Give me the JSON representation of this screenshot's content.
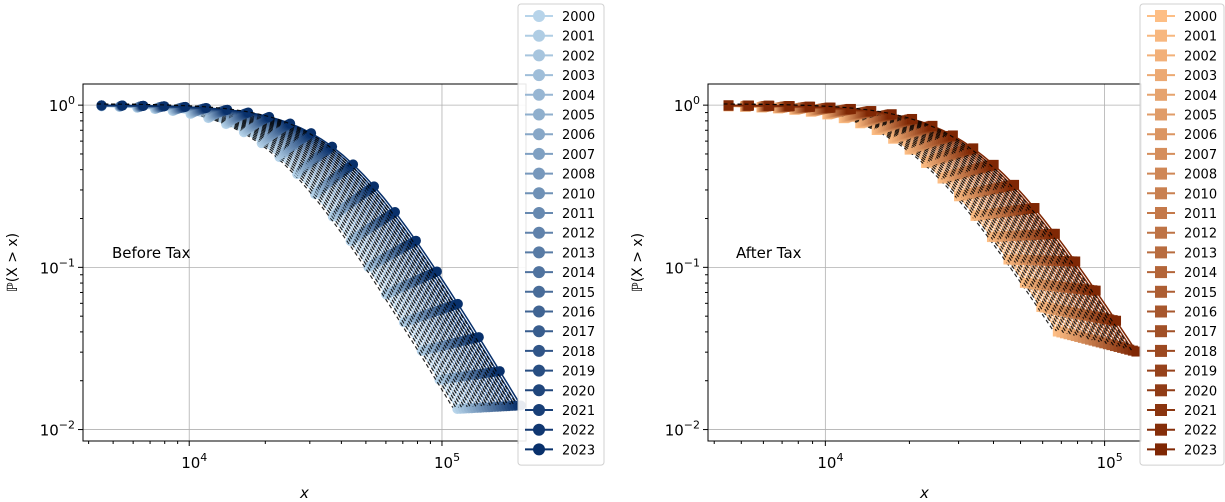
{
  "chart_data": [
    {
      "type": "line",
      "annotation": "Before Tax",
      "xlabel": "x",
      "ylabel": "ℙ(X > x)",
      "xscale": "log",
      "yscale": "log",
      "xlim": [
        3800,
        215000
      ],
      "ylim": [
        0.0085,
        1.35
      ],
      "x_ticks": [
        {
          "value": 10000,
          "base": "10",
          "exp": "4"
        },
        {
          "value": 100000,
          "base": "10",
          "exp": "5"
        }
      ],
      "y_ticks": [
        {
          "value": 1,
          "base": "10",
          "exp": "0"
        },
        {
          "value": 0.1,
          "base": "10",
          "exp": "−1"
        },
        {
          "value": 0.01,
          "base": "10",
          "exp": "−2"
        }
      ],
      "grid": true,
      "legend_position": "outside-right-top",
      "marker": "circle",
      "colormap": "Blues",
      "color_light": "#b7d4ea",
      "color_dark": "#08306b",
      "fit_line_color": "#000000",
      "x_min": 4500,
      "x_median_first": 22000,
      "x_median_last": 40000,
      "x_max_first": 115000,
      "x_max_last": 205000,
      "tail_exponent": 2.6,
      "series": [
        {
          "name": "2000"
        },
        {
          "name": "2001"
        },
        {
          "name": "2002"
        },
        {
          "name": "2003"
        },
        {
          "name": "2004"
        },
        {
          "name": "2005"
        },
        {
          "name": "2006"
        },
        {
          "name": "2007"
        },
        {
          "name": "2008"
        },
        {
          "name": "2010"
        },
        {
          "name": "2011"
        },
        {
          "name": "2012"
        },
        {
          "name": "2013"
        },
        {
          "name": "2014"
        },
        {
          "name": "2015"
        },
        {
          "name": "2016"
        },
        {
          "name": "2017"
        },
        {
          "name": "2018"
        },
        {
          "name": "2019"
        },
        {
          "name": "2020"
        },
        {
          "name": "2021"
        },
        {
          "name": "2022"
        },
        {
          "name": "2023"
        }
      ]
    },
    {
      "type": "line",
      "annotation": "After Tax",
      "xlabel": "x",
      "ylabel": "ℙ(X > x)",
      "xscale": "log",
      "yscale": "log",
      "xlim": [
        3800,
        135000
      ],
      "ylim": [
        0.0085,
        1.35
      ],
      "x_ticks": [
        {
          "value": 10000,
          "base": "10",
          "exp": "4"
        },
        {
          "value": 100000,
          "base": "10",
          "exp": "5"
        }
      ],
      "y_ticks": [
        {
          "value": 1,
          "base": "10",
          "exp": "0"
        },
        {
          "value": 0.1,
          "base": "10",
          "exp": "−1"
        },
        {
          "value": 0.01,
          "base": "10",
          "exp": "−2"
        }
      ],
      "grid": true,
      "legend_position": "outside-right-top",
      "marker": "square",
      "colormap": "Oranges",
      "color_light": "#fdbe85",
      "color_dark": "#7f2704",
      "fit_line_color": "#000000",
      "x_min": 4500,
      "x_median_first": 21000,
      "x_median_last": 36000,
      "x_max_first": 68000,
      "x_max_last": 130000,
      "tail_exponent": 2.7,
      "series": [
        {
          "name": "2000"
        },
        {
          "name": "2001"
        },
        {
          "name": "2002"
        },
        {
          "name": "2003"
        },
        {
          "name": "2004"
        },
        {
          "name": "2005"
        },
        {
          "name": "2006"
        },
        {
          "name": "2007"
        },
        {
          "name": "2008"
        },
        {
          "name": "2010"
        },
        {
          "name": "2011"
        },
        {
          "name": "2012"
        },
        {
          "name": "2013"
        },
        {
          "name": "2014"
        },
        {
          "name": "2015"
        },
        {
          "name": "2016"
        },
        {
          "name": "2017"
        },
        {
          "name": "2018"
        },
        {
          "name": "2019"
        },
        {
          "name": "2020"
        },
        {
          "name": "2021"
        },
        {
          "name": "2022"
        },
        {
          "name": "2023"
        }
      ]
    }
  ]
}
